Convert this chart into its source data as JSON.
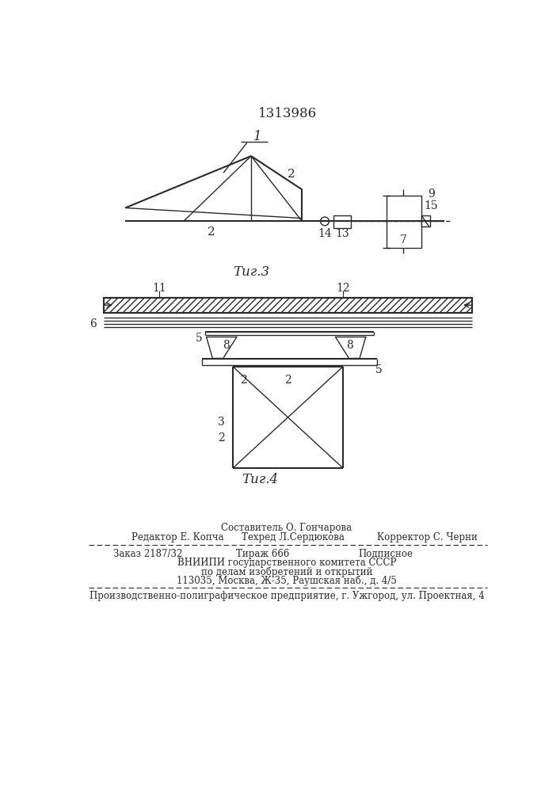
{
  "patent_number": "1313986",
  "fig3_label": "Τиг.3",
  "fig4_label": "Τиг.4",
  "footer_sestavitel": "Составитель О. Гончарова",
  "footer_redaktor": "Редактор Е. Копча",
  "footer_tehred": "Техред Л.Сердюкова",
  "footer_korrektor": "Корректор С. Черни",
  "footer_zakaz": "Заказ 2187/32",
  "footer_tirazh": "Тираж 666",
  "footer_podpisnoe": "Подписное",
  "footer_vnipi": "ВНИИПИ государственного комитета СССР",
  "footer_dela": "по делам изобретений и открытий",
  "footer_addr": "113035, Москва, Ж-35, Раушская наб., д. 4/5",
  "footer_proizv": "Производственно-полиграфическое предприятие, г. Ужгород, ул. Проектная, 4",
  "bg_color": "#ffffff",
  "line_color": "#2a2a2a"
}
